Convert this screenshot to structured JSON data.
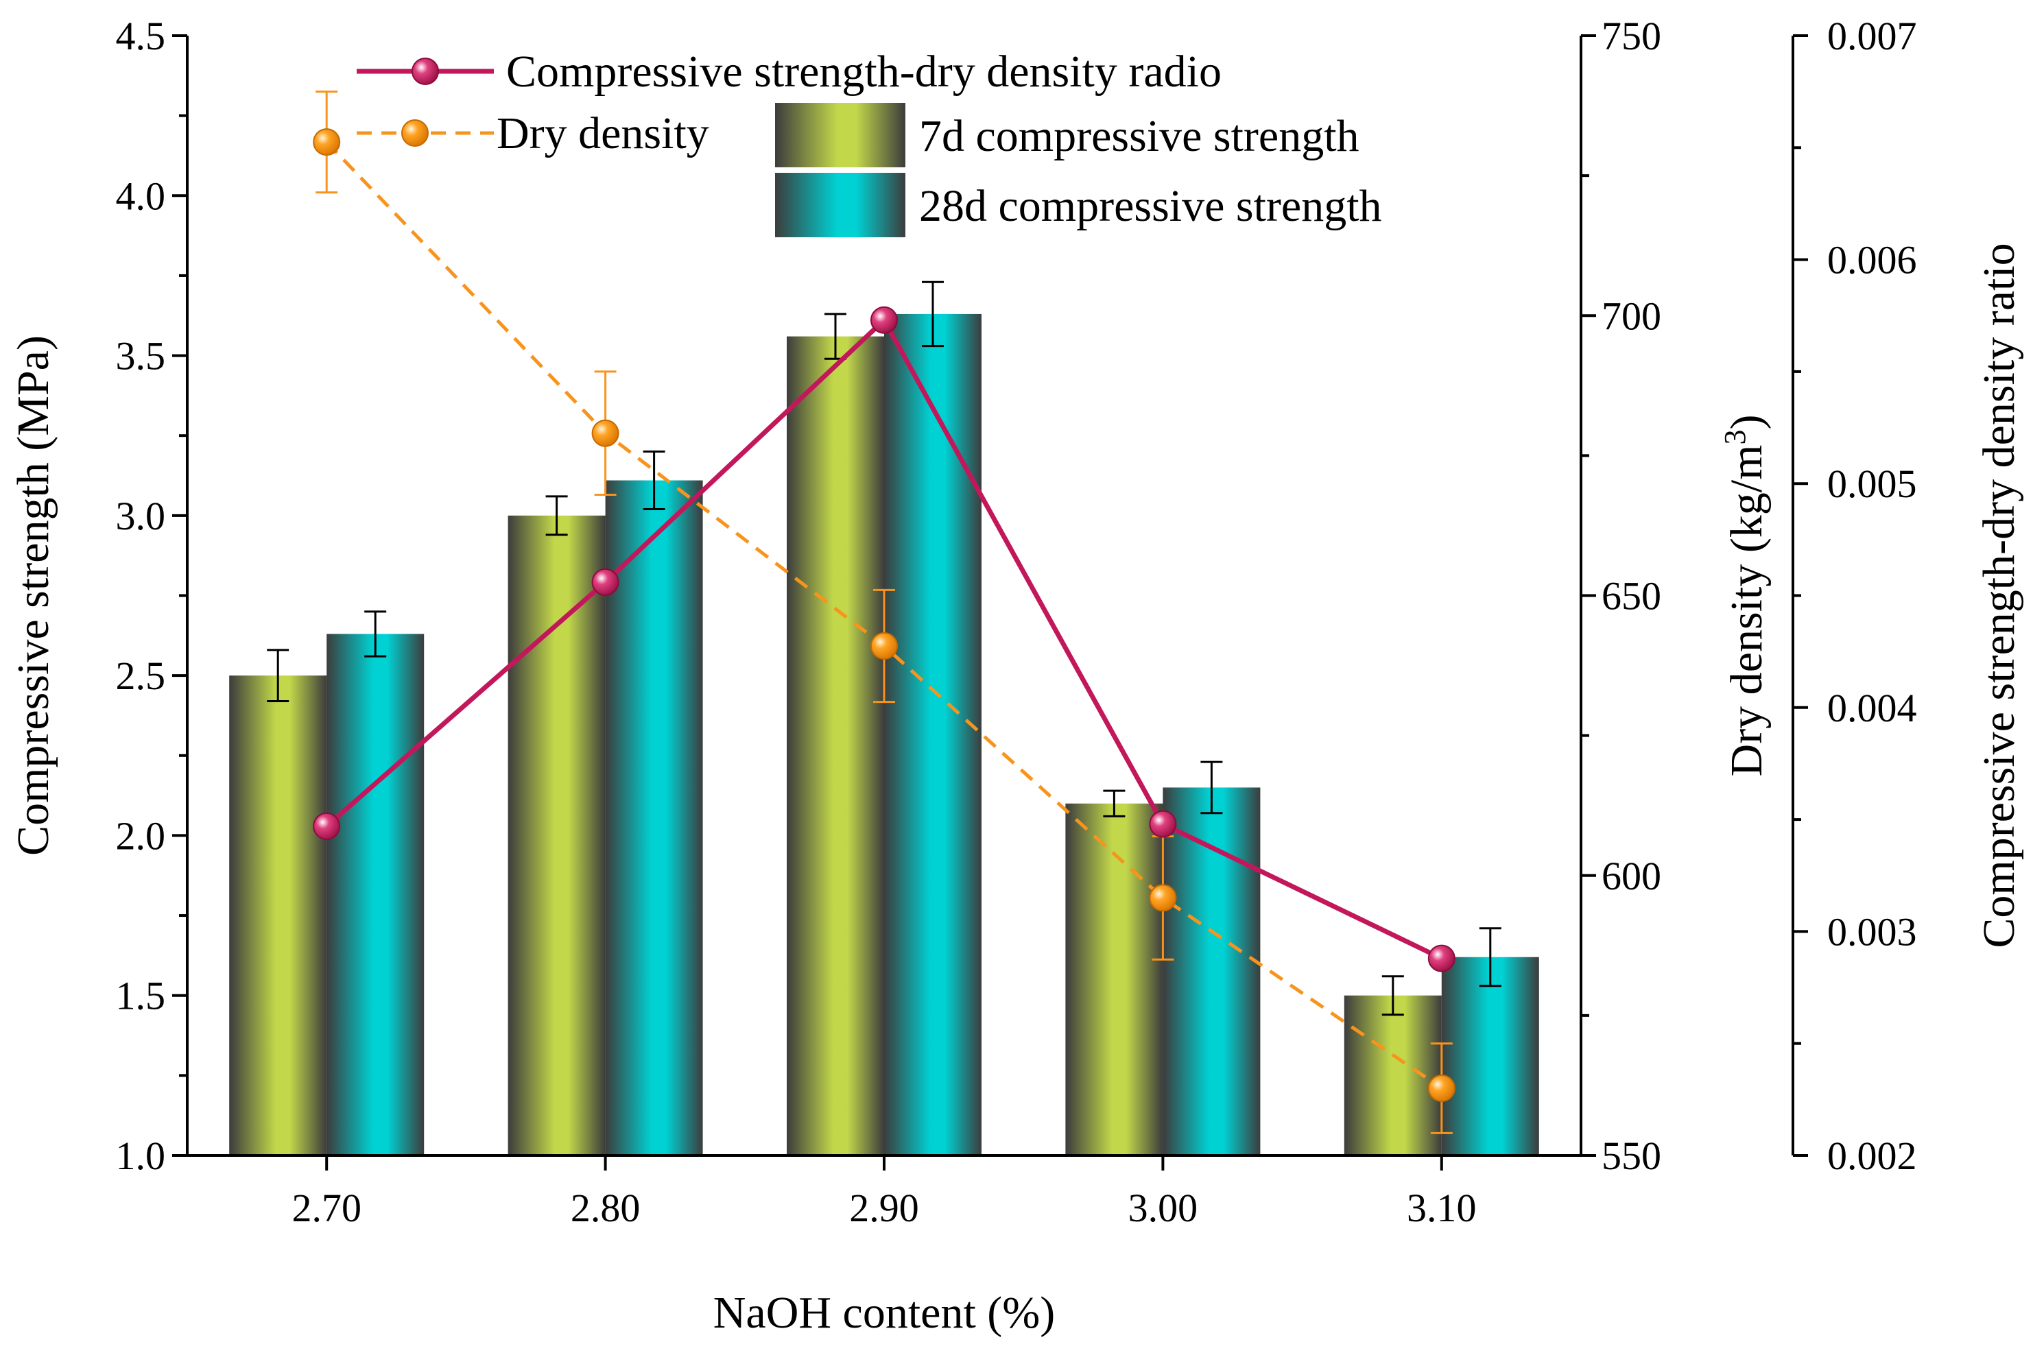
{
  "chart_data": {
    "type": "bar",
    "categories": [
      "2.70",
      "2.80",
      "2.90",
      "3.00",
      "3.10"
    ],
    "xlabel": "NaOH content (%)",
    "ylabel": "Compressive strength (MPa)",
    "ylim": [
      1.0,
      4.5
    ],
    "y_ticks": [
      "1.0",
      "1.5",
      "2.0",
      "2.5",
      "3.0",
      "3.5",
      "4.0",
      "4.5"
    ],
    "y2label_main": "Dry density (kg/m",
    "y2label_sup": "3",
    "y2label_close": ")",
    "y2lim": [
      550,
      750
    ],
    "y2_ticks": [
      "550",
      "600",
      "650",
      "700",
      "750"
    ],
    "y3label": "Compressive strength-dry density ratio",
    "y3lim": [
      0.002,
      0.007
    ],
    "y3_ticks": [
      "0.002",
      "0.003",
      "0.004",
      "0.005",
      "0.006",
      "0.007"
    ],
    "series": [
      {
        "name": "7d compressive strength",
        "kind": "bar",
        "axis": "left",
        "values": [
          2.5,
          3.0,
          3.56,
          2.1,
          1.5
        ],
        "errors": [
          0.08,
          0.06,
          0.07,
          0.04,
          0.06
        ],
        "colors": [
          "#c2d84a",
          "#3c3c3c"
        ]
      },
      {
        "name": "28d compressive strength",
        "kind": "bar",
        "axis": "left",
        "values": [
          2.63,
          3.11,
          3.63,
          2.15,
          1.62
        ],
        "errors": [
          0.07,
          0.09,
          0.1,
          0.08,
          0.09
        ],
        "colors": [
          "#00d2d4",
          "#3c3c3c"
        ]
      },
      {
        "name": "Compressive strength-dry density radio",
        "kind": "line",
        "axis": "right-outer",
        "values": [
          0.00347,
          0.00456,
          0.00573,
          0.00348,
          0.00288
        ],
        "color": "#c2185b"
      },
      {
        "name": "Dry density",
        "kind": "line-dashed",
        "axis": "right-inner",
        "values": [
          731,
          679,
          641,
          596,
          562
        ],
        "errors": [
          9,
          11,
          10,
          11,
          8
        ],
        "color": "#f7941d"
      }
    ],
    "legend": {
      "position": "top",
      "entries": [
        "Compressive strength-dry density radio",
        "Dry density",
        "7d compressive strength",
        "28d compressive strength"
      ]
    }
  }
}
